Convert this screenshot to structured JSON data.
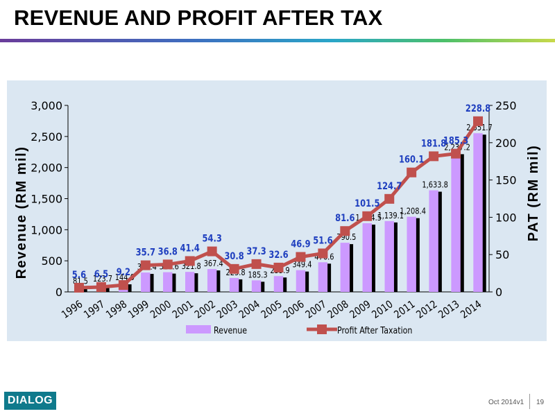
{
  "slide": {
    "title": "REVENUE AND PROFIT AFTER TAX",
    "logo_text": "DIALOG",
    "version": "Oct 2014v1",
    "page_number": "19"
  },
  "chart_data": {
    "type": "bar",
    "title": "",
    "xlabel": "",
    "ylabel": "Revenue (RM mil)",
    "y2label": "PAT (RM mil)",
    "ylim": [
      0,
      3000
    ],
    "y2lim": [
      0,
      250
    ],
    "yticks": [
      "0",
      "500",
      "1,000",
      "1,500",
      "2,000",
      "2,500",
      "3,000"
    ],
    "y2ticks": [
      "0",
      "50",
      "100",
      "150",
      "200",
      "250"
    ],
    "categories": [
      "1996",
      "1997",
      "1998",
      "1999",
      "2000",
      "2001",
      "2002",
      "2003",
      "2004",
      "2005",
      "2006",
      "2007",
      "2008",
      "2009",
      "2010",
      "2011",
      "2012",
      "2013",
      "2014"
    ],
    "series": [
      {
        "name": "Revenue",
        "type": "bar",
        "axis": "left",
        "color": "#cc99ff",
        "values": [
          81.5,
          123.7,
          144.0,
          311.4,
          316.6,
          321.8,
          367.4,
          223.8,
          185.3,
          253.9,
          349.4,
          476.6,
          790.5,
          1104.5,
          1139.1,
          1208.4,
          1633.8,
          2237.2,
          2551.7
        ],
        "labels": [
          "81.5",
          "123.7",
          "144.0",
          "311.4",
          "316.6",
          "321.8",
          "367.4",
          "223.8",
          "185.3",
          "253.9",
          "349.4",
          "476.6",
          "790.5",
          "1,104.5",
          "1,139.1",
          "1,208.4",
          "1,633.8",
          "2,237.2",
          "2,551.7"
        ]
      },
      {
        "name": "Profit After Taxation",
        "type": "line",
        "axis": "right",
        "color": "#c0504d",
        "values": [
          5.6,
          6.5,
          9.2,
          35.7,
          36.8,
          41.4,
          54.3,
          30.8,
          37.3,
          32.6,
          46.9,
          51.6,
          81.6,
          101.5,
          124.7,
          160.1,
          181.8,
          185.3,
          228.8
        ],
        "labels": [
          "5.6",
          "6.5",
          "9.2",
          "35.7",
          "36.8",
          "41.4",
          "54.3",
          "30.8",
          "37.3",
          "32.6",
          "46.9",
          "51.6",
          "81.6",
          "101.5",
          "124.7",
          "160.1",
          "181.8",
          "185.3",
          "228.8"
        ]
      }
    ],
    "grid": false,
    "legend": "bottom",
    "colors": {
      "revenue_bar": "#cc99ff",
      "bar_shadow": "#000000",
      "pat_line": "#c0504d",
      "pat_label": "#1f3fbf",
      "panel_bg": "#dbe7f2"
    }
  }
}
